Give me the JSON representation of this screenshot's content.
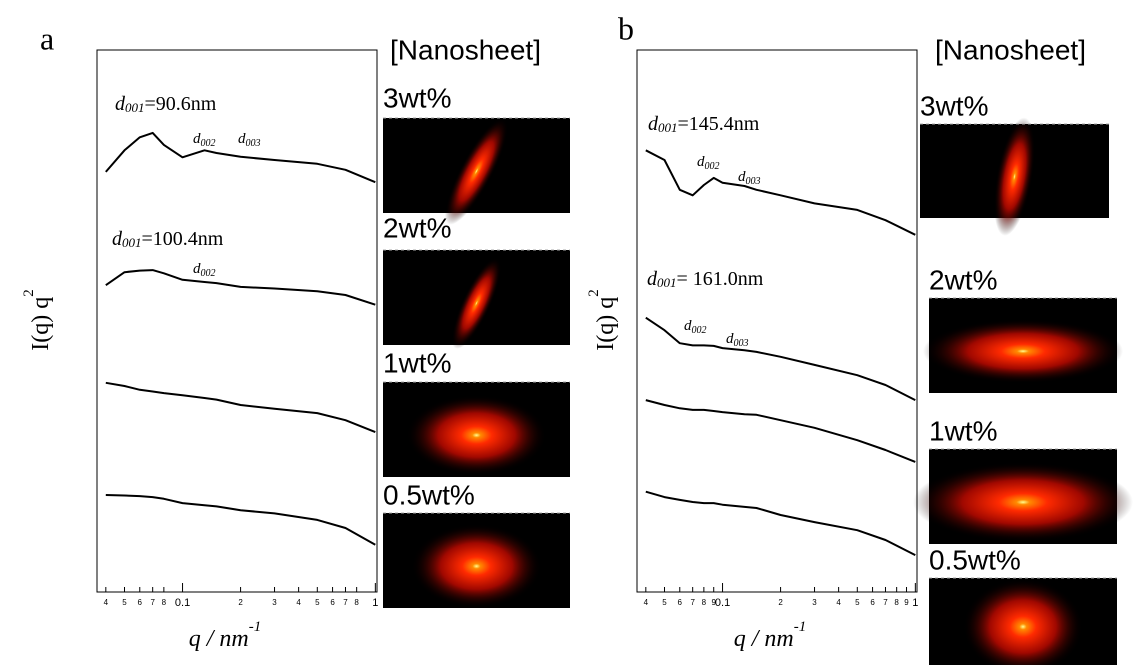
{
  "chart_data": [
    {
      "type": "line",
      "panel": "a",
      "heading": "[Nanosheet]",
      "xscale": "log",
      "xlabel": "q / nm",
      "xlabel_sup": "-1",
      "ylabel": "I(q) q",
      "ylabel_sup": "2",
      "xlim": [
        0.036,
        1.02
      ],
      "ylim": [
        0,
        100
      ],
      "xticks": [
        {
          "value": 0.04,
          "label": "4"
        },
        {
          "value": 0.05,
          "label": "5"
        },
        {
          "value": 0.06,
          "label": "6"
        },
        {
          "value": 0.07,
          "label": "7"
        },
        {
          "value": 0.08,
          "label": "8"
        },
        0.1,
        {
          "value": 0.2,
          "label": "2"
        },
        {
          "value": 0.3,
          "label": "3"
        },
        {
          "value": 0.4,
          "label": "4"
        },
        {
          "value": 0.5,
          "label": "5"
        },
        {
          "value": 0.6,
          "label": "6"
        },
        {
          "value": 0.7,
          "label": "7"
        },
        {
          "value": 0.8,
          "label": "8"
        },
        1
      ],
      "x": [
        0.04,
        0.05,
        0.06,
        0.07,
        0.08,
        0.1,
        0.13,
        0.15,
        0.2,
        0.3,
        0.5,
        0.7,
        1.0
      ],
      "series": [
        {
          "color": "#000000",
          "values": [
            77.5,
            81.5,
            83.9,
            84.7,
            82.5,
            80.2,
            81.5,
            81.0,
            80.3,
            79.7,
            79.0,
            77.9,
            75.6
          ]
        },
        {
          "color": "#000000",
          "values": [
            56.6,
            59.0,
            59.3,
            59.4,
            58.8,
            57.6,
            57.2,
            57.0,
            56.3,
            56.0,
            55.5,
            54.8,
            53.0
          ]
        },
        {
          "color": "#000000",
          "values": [
            38.6,
            38.0,
            37.3,
            37.0,
            36.7,
            36.3,
            35.8,
            35.5,
            34.5,
            33.8,
            33.0,
            31.7,
            29.5
          ]
        },
        {
          "color": "#000000",
          "values": [
            17.9,
            17.8,
            17.7,
            17.5,
            17.2,
            16.4,
            16.0,
            15.8,
            15.1,
            14.5,
            13.3,
            11.8,
            8.7
          ]
        }
      ],
      "annotations": [
        {
          "symbol": "d",
          "index": "001",
          "text": "=90.6nm"
        },
        {
          "symbol": "d",
          "index": "002"
        },
        {
          "symbol": "d",
          "index": "003"
        },
        {
          "symbol": "d",
          "index": "001",
          "text": "=100.4nm"
        },
        {
          "symbol": "d",
          "index": "002"
        }
      ],
      "samples": [
        "3wt%",
        "2wt%",
        "1wt%",
        "0.5wt%"
      ]
    },
    {
      "type": "line",
      "panel": "b",
      "heading": "[Nanosheet]",
      "xscale": "log",
      "xlabel": "q / nm",
      "xlabel_sup": "-1",
      "ylabel": "I(q) q",
      "ylabel_sup": "2",
      "xlim": [
        0.036,
        1.02
      ],
      "ylim": [
        0,
        100
      ],
      "xticks": [
        {
          "value": 0.04,
          "label": "4"
        },
        {
          "value": 0.05,
          "label": "5"
        },
        {
          "value": 0.06,
          "label": "6"
        },
        {
          "value": 0.07,
          "label": "7"
        },
        {
          "value": 0.08,
          "label": "8"
        },
        {
          "value": 0.09,
          "label": "9"
        },
        0.1,
        {
          "value": 0.2,
          "label": "2"
        },
        {
          "value": 0.3,
          "label": "3"
        },
        {
          "value": 0.4,
          "label": "4"
        },
        {
          "value": 0.5,
          "label": "5"
        },
        {
          "value": 0.6,
          "label": "6"
        },
        {
          "value": 0.7,
          "label": "7"
        },
        {
          "value": 0.8,
          "label": "8"
        },
        {
          "value": 0.9,
          "label": "9"
        },
        1
      ],
      "x": [
        0.04,
        0.05,
        0.06,
        0.07,
        0.08,
        0.09,
        0.1,
        0.13,
        0.15,
        0.2,
        0.3,
        0.5,
        0.7,
        1.0
      ],
      "series": [
        {
          "color": "#000000",
          "values": [
            81.5,
            79.7,
            74.2,
            73.2,
            75.1,
            76.4,
            75.5,
            74.9,
            74.2,
            73.2,
            71.7,
            70.5,
            68.6,
            65.9
          ]
        },
        {
          "color": "#000000",
          "values": [
            50.6,
            48.3,
            45.9,
            45.5,
            45.5,
            45.4,
            45.0,
            44.6,
            44.3,
            43.4,
            41.9,
            40.0,
            38.2,
            35.4
          ]
        },
        {
          "color": "#000000",
          "values": [
            35.4,
            34.5,
            33.9,
            33.6,
            33.6,
            33.4,
            33.2,
            32.8,
            32.7,
            31.7,
            30.3,
            28.0,
            26.2,
            24.0
          ]
        },
        {
          "color": "#000000",
          "values": [
            18.5,
            17.5,
            17.0,
            16.6,
            16.4,
            16.4,
            16.1,
            15.7,
            15.5,
            14.2,
            12.9,
            11.4,
            9.6,
            6.8
          ]
        }
      ],
      "annotations": [
        {
          "symbol": "d",
          "index": "001",
          "text": "=145.4nm"
        },
        {
          "symbol": "d",
          "index": "002"
        },
        {
          "symbol": "d",
          "index": "003"
        },
        {
          "symbol": "d",
          "index": "001",
          "text": "= 161.0nm"
        },
        {
          "symbol": "d",
          "index": "002"
        },
        {
          "symbol": "d",
          "index": "003"
        }
      ],
      "samples": [
        "3wt%",
        "2wt%",
        "1wt%",
        "0.5wt%"
      ]
    }
  ]
}
